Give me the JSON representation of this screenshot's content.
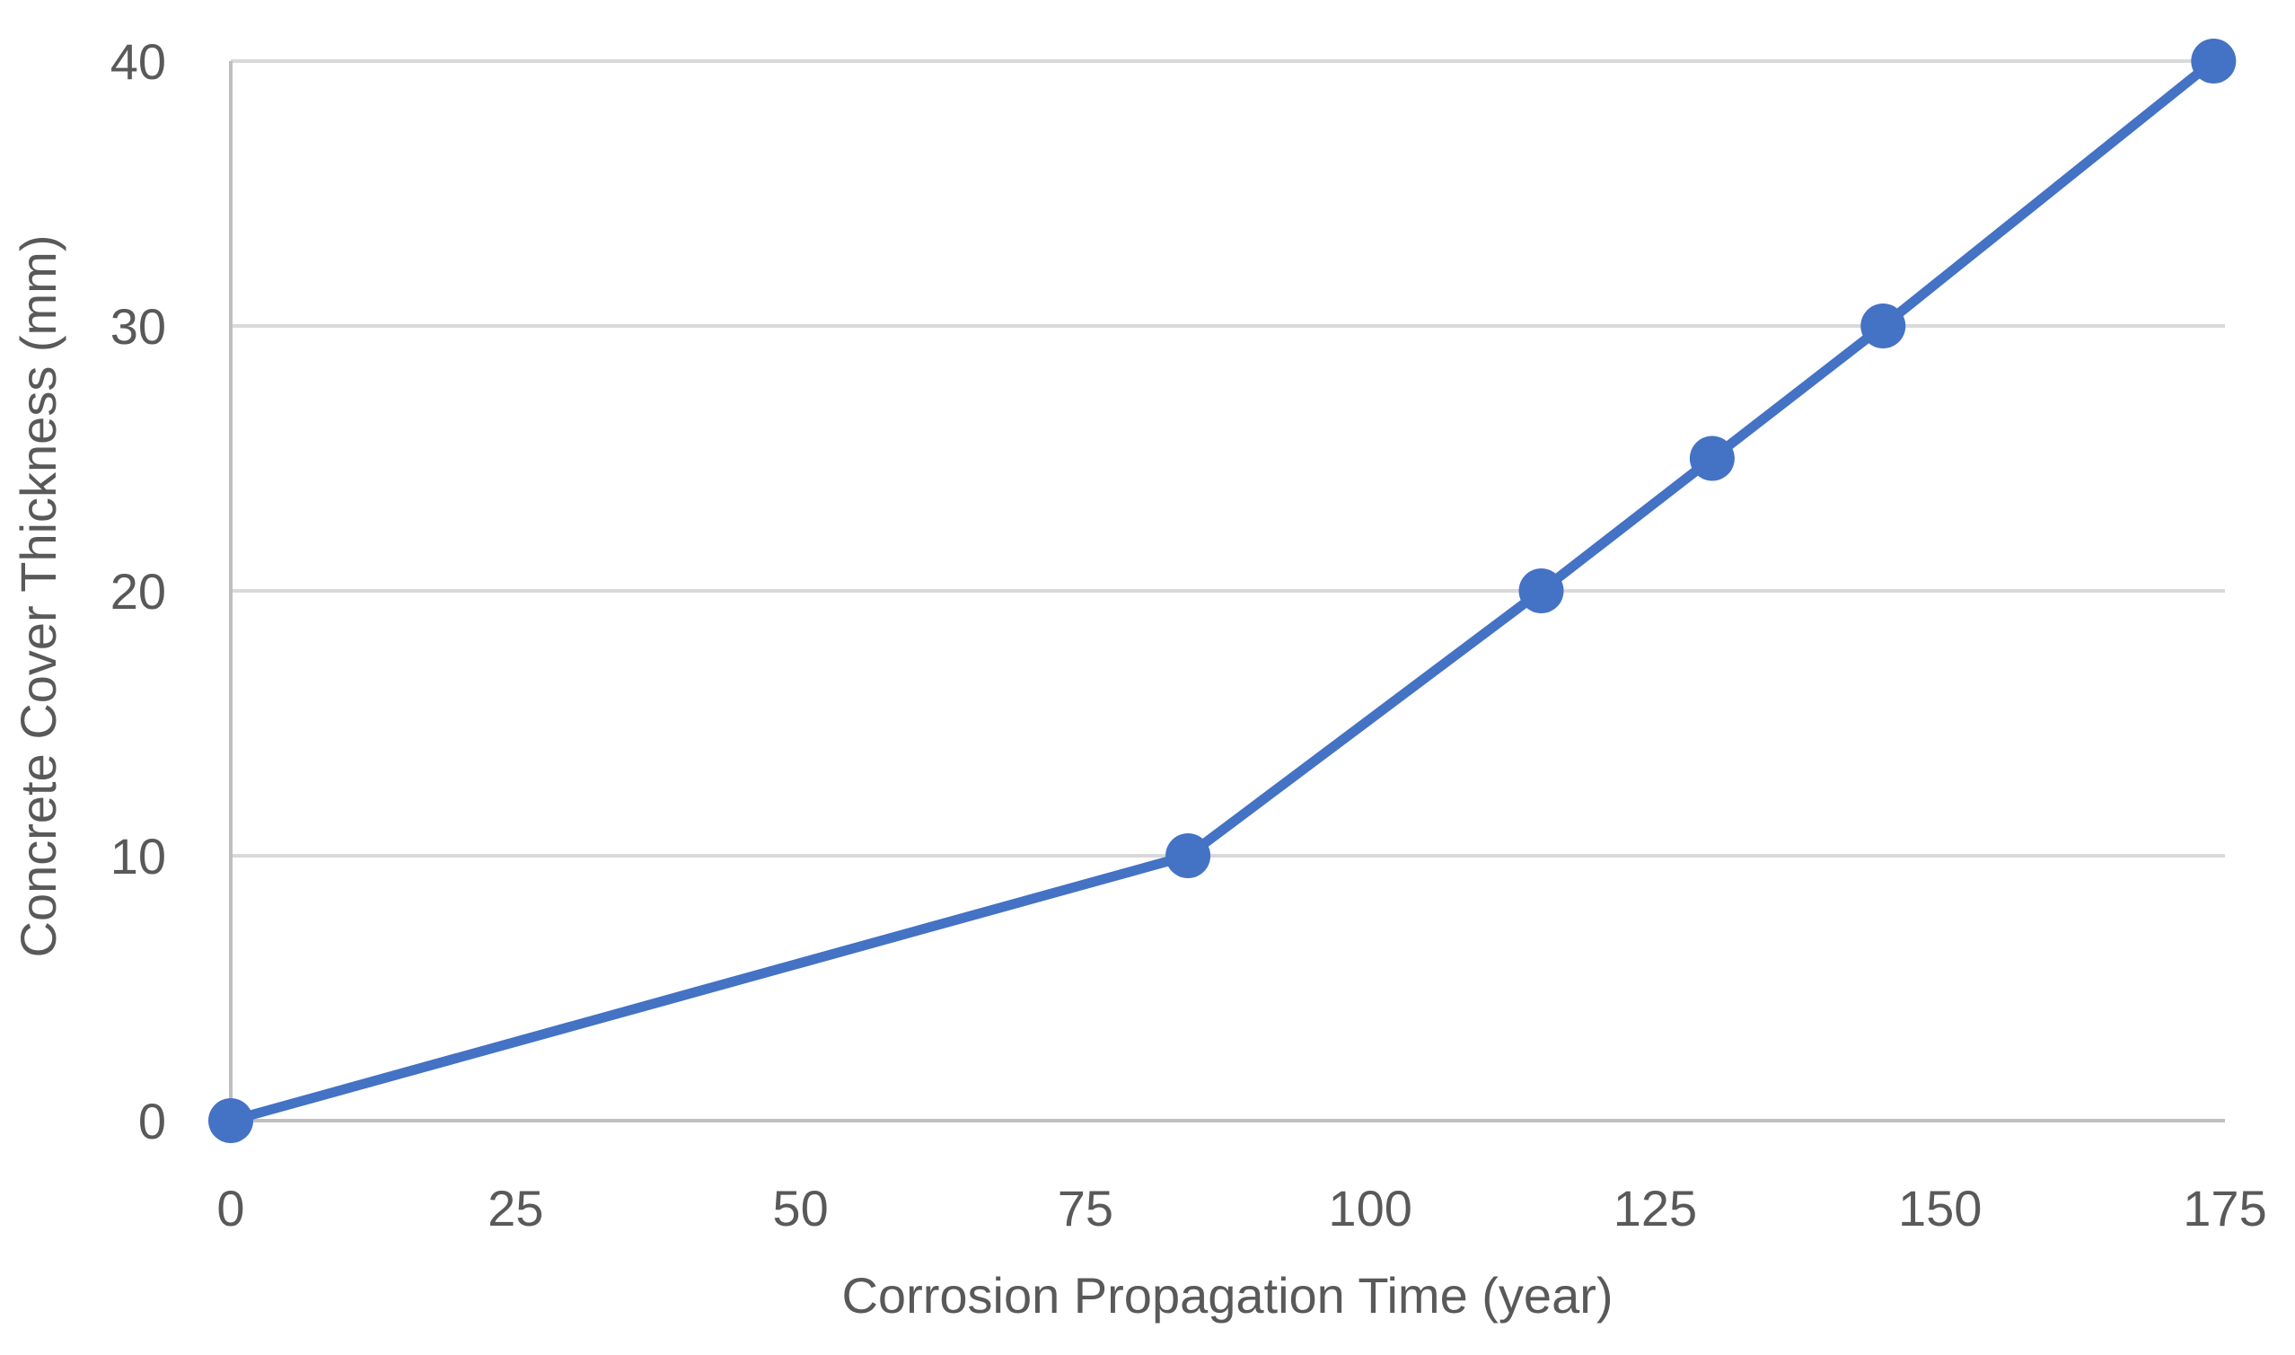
{
  "chart_data": {
    "type": "line",
    "title": "",
    "xlabel": "Corrosion Propagation Time (year)",
    "ylabel": "Concrete Cover Thickness (mm)",
    "xlim": [
      0,
      175
    ],
    "ylim": [
      0,
      40
    ],
    "xticks": [
      0,
      25,
      50,
      75,
      100,
      125,
      150,
      175
    ],
    "yticks": [
      0,
      10,
      20,
      30,
      40
    ],
    "grid": {
      "horizontal": true,
      "vertical": false
    },
    "legend": "none",
    "series": [
      {
        "color": "#4472c4",
        "x": [
          0,
          84,
          115,
          130,
          145,
          174
        ],
        "y": [
          0,
          10,
          20,
          25,
          30,
          40
        ]
      }
    ]
  }
}
